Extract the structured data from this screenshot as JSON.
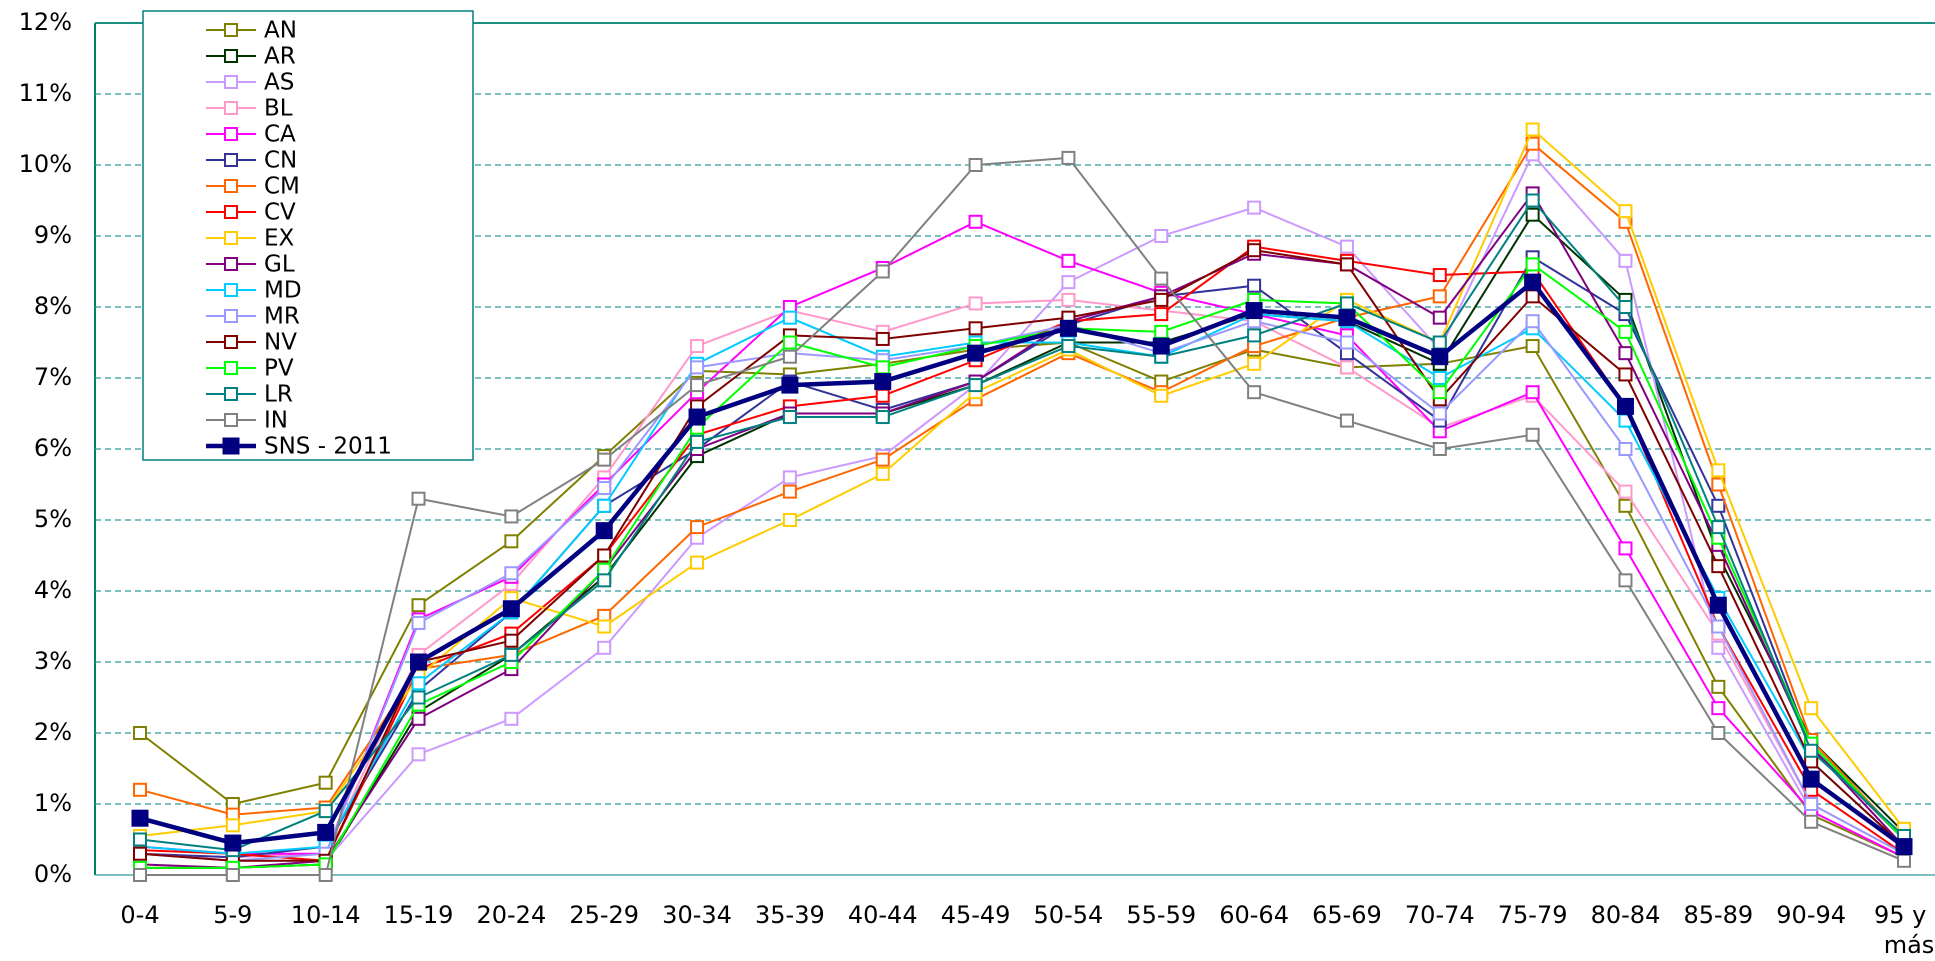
{
  "chart_data": {
    "type": "line",
    "categories": [
      "0-4",
      "5-9",
      "10-14",
      "15-19",
      "20-24",
      "25-29",
      "30-34",
      "35-39",
      "40-44",
      "45-49",
      "50-54",
      "55-59",
      "60-64",
      "65-69",
      "70-74",
      "75-79",
      "80-84",
      "85-89",
      "90-94",
      "95 y más"
    ],
    "ylim": [
      0,
      12
    ],
    "yticks": [
      {
        "value": 0,
        "label": "0%"
      },
      {
        "value": 1,
        "label": "1%"
      },
      {
        "value": 2,
        "label": "2%"
      },
      {
        "value": 3,
        "label": "3%"
      },
      {
        "value": 4,
        "label": "4%"
      },
      {
        "value": 5,
        "label": "5%"
      },
      {
        "value": 6,
        "label": "6%"
      },
      {
        "value": 7,
        "label": "7%"
      },
      {
        "value": 8,
        "label": "8%"
      },
      {
        "value": 9,
        "label": "9%"
      },
      {
        "value": 10,
        "label": "10%"
      },
      {
        "value": 11,
        "label": "11%"
      },
      {
        "value": 12,
        "label": "12%"
      }
    ],
    "grid": true,
    "legend": "upper left",
    "series": [
      {
        "name": "AN",
        "color": "#808000",
        "values": [
          2.0,
          1.0,
          1.3,
          3.8,
          4.7,
          5.9,
          7.1,
          7.05,
          7.2,
          7.4,
          7.5,
          6.95,
          7.4,
          7.15,
          7.2,
          7.45,
          5.2,
          2.65,
          0.85,
          0.25
        ]
      },
      {
        "name": "AR",
        "color": "#003300",
        "values": [
          0.1,
          0.1,
          0.15,
          2.3,
          3.1,
          4.2,
          5.9,
          6.5,
          6.5,
          6.9,
          7.5,
          7.5,
          7.9,
          7.8,
          7.2,
          9.3,
          8.1,
          4.5,
          1.9,
          0.6
        ]
      },
      {
        "name": "AS",
        "color": "#cc99ff",
        "values": [
          0.3,
          0.2,
          0.2,
          1.7,
          2.2,
          3.2,
          4.75,
          5.6,
          5.9,
          6.9,
          8.35,
          9.0,
          9.4,
          8.85,
          7.4,
          10.15,
          8.65,
          3.2,
          0.9,
          0.25
        ]
      },
      {
        "name": "BL",
        "color": "#ff99cc",
        "values": [
          0.3,
          0.25,
          0.3,
          3.1,
          4.1,
          5.6,
          7.45,
          7.95,
          7.65,
          8.05,
          8.1,
          7.95,
          7.8,
          7.15,
          6.3,
          6.75,
          5.4,
          3.4,
          1.0,
          0.3
        ]
      },
      {
        "name": "CA",
        "color": "#ff00ff",
        "values": [
          0.4,
          0.3,
          0.3,
          3.6,
          4.2,
          5.5,
          6.8,
          8.0,
          8.55,
          9.2,
          8.65,
          8.2,
          7.9,
          7.6,
          6.25,
          6.8,
          4.6,
          2.35,
          0.9,
          0.25
        ]
      },
      {
        "name": "CN",
        "color": "#333399",
        "values": [
          0.3,
          0.25,
          0.4,
          2.6,
          3.7,
          5.2,
          6.0,
          6.95,
          6.55,
          6.95,
          7.75,
          8.15,
          8.3,
          7.35,
          6.4,
          8.7,
          7.9,
          5.2,
          1.8,
          0.5
        ]
      },
      {
        "name": "CM",
        "color": "#ff6600",
        "values": [
          1.2,
          0.85,
          0.95,
          2.9,
          3.1,
          3.65,
          4.9,
          5.4,
          5.85,
          6.7,
          7.35,
          6.8,
          7.45,
          7.85,
          8.15,
          10.3,
          9.2,
          5.5,
          1.9,
          0.5
        ]
      },
      {
        "name": "CV",
        "color": "#ff0000",
        "values": [
          0.35,
          0.3,
          0.2,
          2.9,
          3.4,
          4.5,
          6.2,
          6.6,
          6.75,
          7.25,
          7.8,
          7.9,
          8.85,
          8.65,
          8.45,
          8.5,
          6.6,
          3.5,
          1.2,
          0.3
        ]
      },
      {
        "name": "EX",
        "color": "#ffcc00",
        "values": [
          0.55,
          0.7,
          0.9,
          2.8,
          3.9,
          3.5,
          4.4,
          5.0,
          5.65,
          6.8,
          7.4,
          6.75,
          7.2,
          8.1,
          7.5,
          10.5,
          9.35,
          5.7,
          2.35,
          0.65
        ]
      },
      {
        "name": "GL",
        "color": "#800080",
        "values": [
          0.15,
          0.1,
          0.2,
          2.2,
          2.9,
          4.3,
          6.0,
          6.5,
          6.5,
          6.95,
          7.8,
          8.15,
          8.75,
          8.6,
          7.85,
          9.6,
          7.35,
          4.65,
          1.8,
          0.4
        ]
      },
      {
        "name": "MD",
        "color": "#00ccff",
        "values": [
          0.4,
          0.3,
          0.4,
          2.7,
          3.7,
          5.2,
          7.2,
          7.85,
          7.3,
          7.5,
          7.5,
          7.3,
          7.9,
          7.8,
          7.0,
          7.7,
          6.4,
          3.9,
          1.6,
          0.4
        ]
      },
      {
        "name": "MR",
        "color": "#9999ff",
        "values": [
          0.3,
          0.2,
          0.3,
          3.55,
          4.25,
          5.45,
          7.15,
          7.35,
          7.25,
          7.45,
          7.75,
          7.35,
          7.8,
          7.5,
          6.5,
          7.8,
          6.0,
          3.5,
          1.0,
          0.3
        ]
      },
      {
        "name": "NV",
        "color": "#800000",
        "values": [
          0.3,
          0.2,
          0.2,
          3.0,
          3.3,
          4.5,
          6.6,
          7.6,
          7.55,
          7.7,
          7.85,
          8.1,
          8.8,
          8.6,
          6.7,
          8.15,
          7.05,
          4.35,
          1.6,
          0.4
        ]
      },
      {
        "name": "PV",
        "color": "#00ff00",
        "values": [
          0.1,
          0.1,
          0.15,
          2.4,
          3.0,
          4.3,
          6.3,
          7.5,
          7.15,
          7.45,
          7.7,
          7.65,
          8.1,
          8.05,
          6.8,
          8.6,
          7.65,
          4.75,
          1.85,
          0.5
        ]
      },
      {
        "name": "LR",
        "color": "#008080",
        "values": [
          0.5,
          0.35,
          0.9,
          2.5,
          3.1,
          4.15,
          6.1,
          6.45,
          6.45,
          6.9,
          7.45,
          7.3,
          7.6,
          8.05,
          7.5,
          9.5,
          8.0,
          4.9,
          1.75,
          0.55
        ]
      },
      {
        "name": "IN",
        "color": "#808080",
        "values": [
          0.0,
          0.0,
          0.0,
          5.3,
          5.05,
          5.85,
          6.9,
          7.3,
          8.5,
          10.0,
          10.1,
          8.4,
          6.8,
          6.4,
          6.0,
          6.2,
          4.15,
          2.0,
          0.75,
          0.2
        ]
      },
      {
        "name": "SNS - 2011",
        "color": "#000080",
        "filled": true,
        "values": [
          0.8,
          0.45,
          0.6,
          3.0,
          3.75,
          4.85,
          6.45,
          6.9,
          6.95,
          7.35,
          7.7,
          7.45,
          7.95,
          7.85,
          7.3,
          8.35,
          6.6,
          3.8,
          1.35,
          0.4
        ]
      }
    ]
  }
}
